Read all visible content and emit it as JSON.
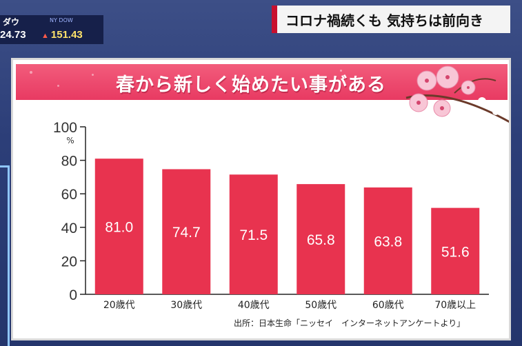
{
  "ticker": {
    "name": "ダウ",
    "badge": "NY DOW",
    "index": "24.73",
    "change": "151.43",
    "change_color": "#ffe36a"
  },
  "headline": "コロナ禍続くも 気持ちは前向き",
  "colors": {
    "bar": "#e8334f",
    "banner": "#ef4a6d",
    "accent": "#c8102e"
  },
  "chart_data": {
    "type": "bar",
    "title": "春から新しく始めたい事がある",
    "categories": [
      "20歳代",
      "30歳代",
      "40歳代",
      "50歳代",
      "60歳代",
      "70歳以上"
    ],
    "values": [
      81.0,
      74.7,
      71.5,
      65.8,
      63.8,
      51.6
    ],
    "value_labels": [
      "81.0",
      "74.7",
      "71.5",
      "65.8",
      "63.8",
      "51.6"
    ],
    "yticks": [
      "0",
      "20",
      "40",
      "60",
      "80",
      "100"
    ],
    "yunit": "%",
    "ylim": [
      0,
      100
    ],
    "xlabel": "",
    "ylabel": "",
    "grid": false,
    "source": "出所：日本生命「ニッセイ　インターネットアンケートより」"
  }
}
